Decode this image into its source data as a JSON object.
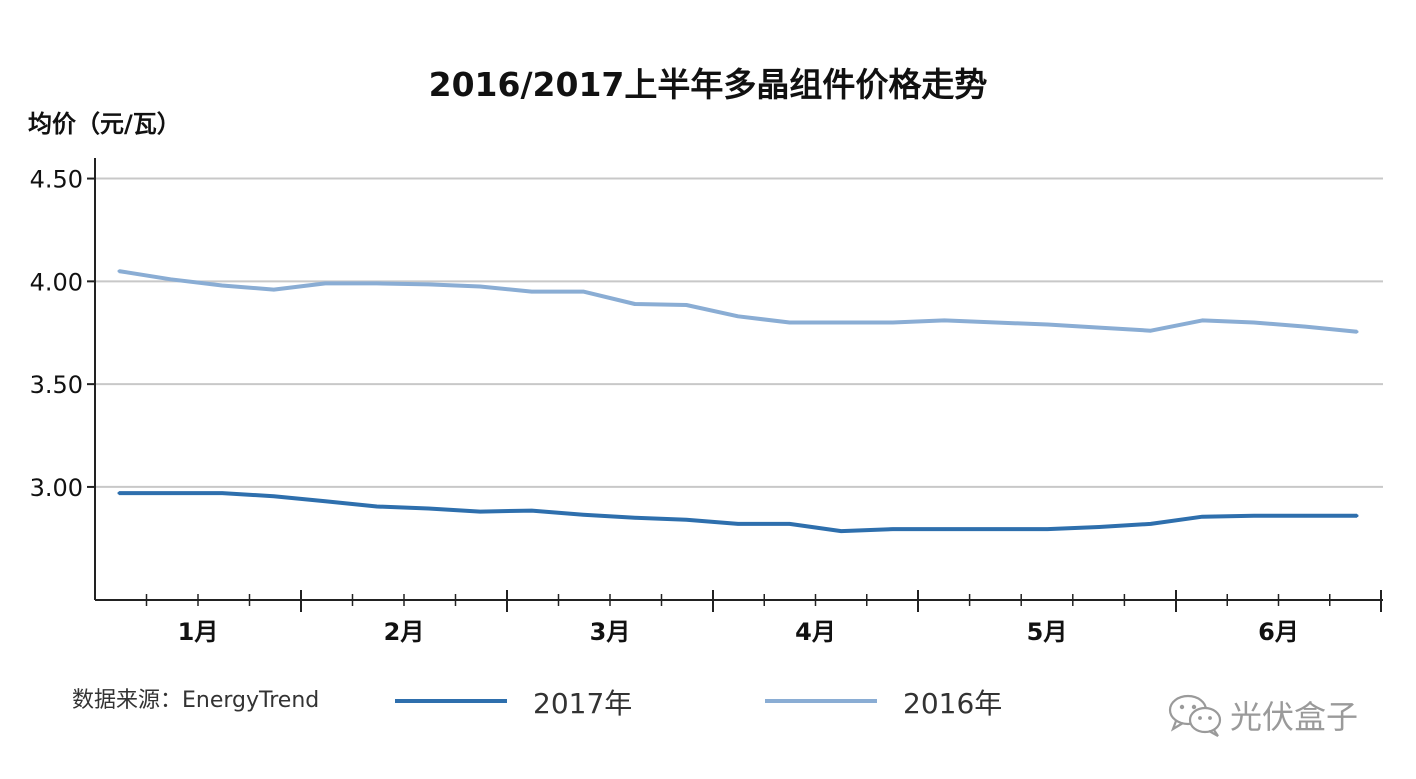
{
  "chart_data": {
    "type": "line",
    "title": "2016/2017上半年多晶组件价格走势",
    "ylabel": "均价（元/瓦）",
    "xlabel": "",
    "ylim": [
      2.45,
      4.6
    ],
    "yticks": [
      3.0,
      3.5,
      4.0,
      4.5
    ],
    "ytick_labels": [
      "3.00",
      "3.50",
      "4.00",
      "4.50"
    ],
    "month_labels": [
      "1月",
      "2月",
      "3月",
      "4月",
      "5月",
      "6月"
    ],
    "grid": true,
    "legend_placement": "bottom",
    "series": [
      {
        "name": "2017年",
        "color": "#2e6fad",
        "values": [
          2.97,
          2.97,
          2.97,
          2.955,
          2.93,
          2.905,
          2.895,
          2.88,
          2.885,
          2.865,
          2.85,
          2.84,
          2.82,
          2.82,
          2.785,
          2.795,
          2.795,
          2.795,
          2.795,
          2.805,
          2.82,
          2.855,
          2.86,
          2.86,
          2.86
        ]
      },
      {
        "name": "2016年",
        "color": "#8aadd4",
        "values": [
          4.05,
          4.01,
          3.98,
          3.96,
          3.99,
          3.99,
          3.985,
          3.975,
          3.95,
          3.95,
          3.89,
          3.885,
          3.83,
          3.8,
          3.8,
          3.8,
          3.81,
          3.8,
          3.79,
          3.775,
          3.76,
          3.81,
          3.8,
          3.78,
          3.755
        ]
      }
    ]
  },
  "source_text": "数据来源：EnergyTrend",
  "legend": [
    {
      "label": "2017年",
      "color": "#2e6fad"
    },
    {
      "label": "2016年",
      "color": "#8aadd4"
    }
  ],
  "watermark": {
    "text": "光伏盒子",
    "icon": "wechat-icon"
  }
}
